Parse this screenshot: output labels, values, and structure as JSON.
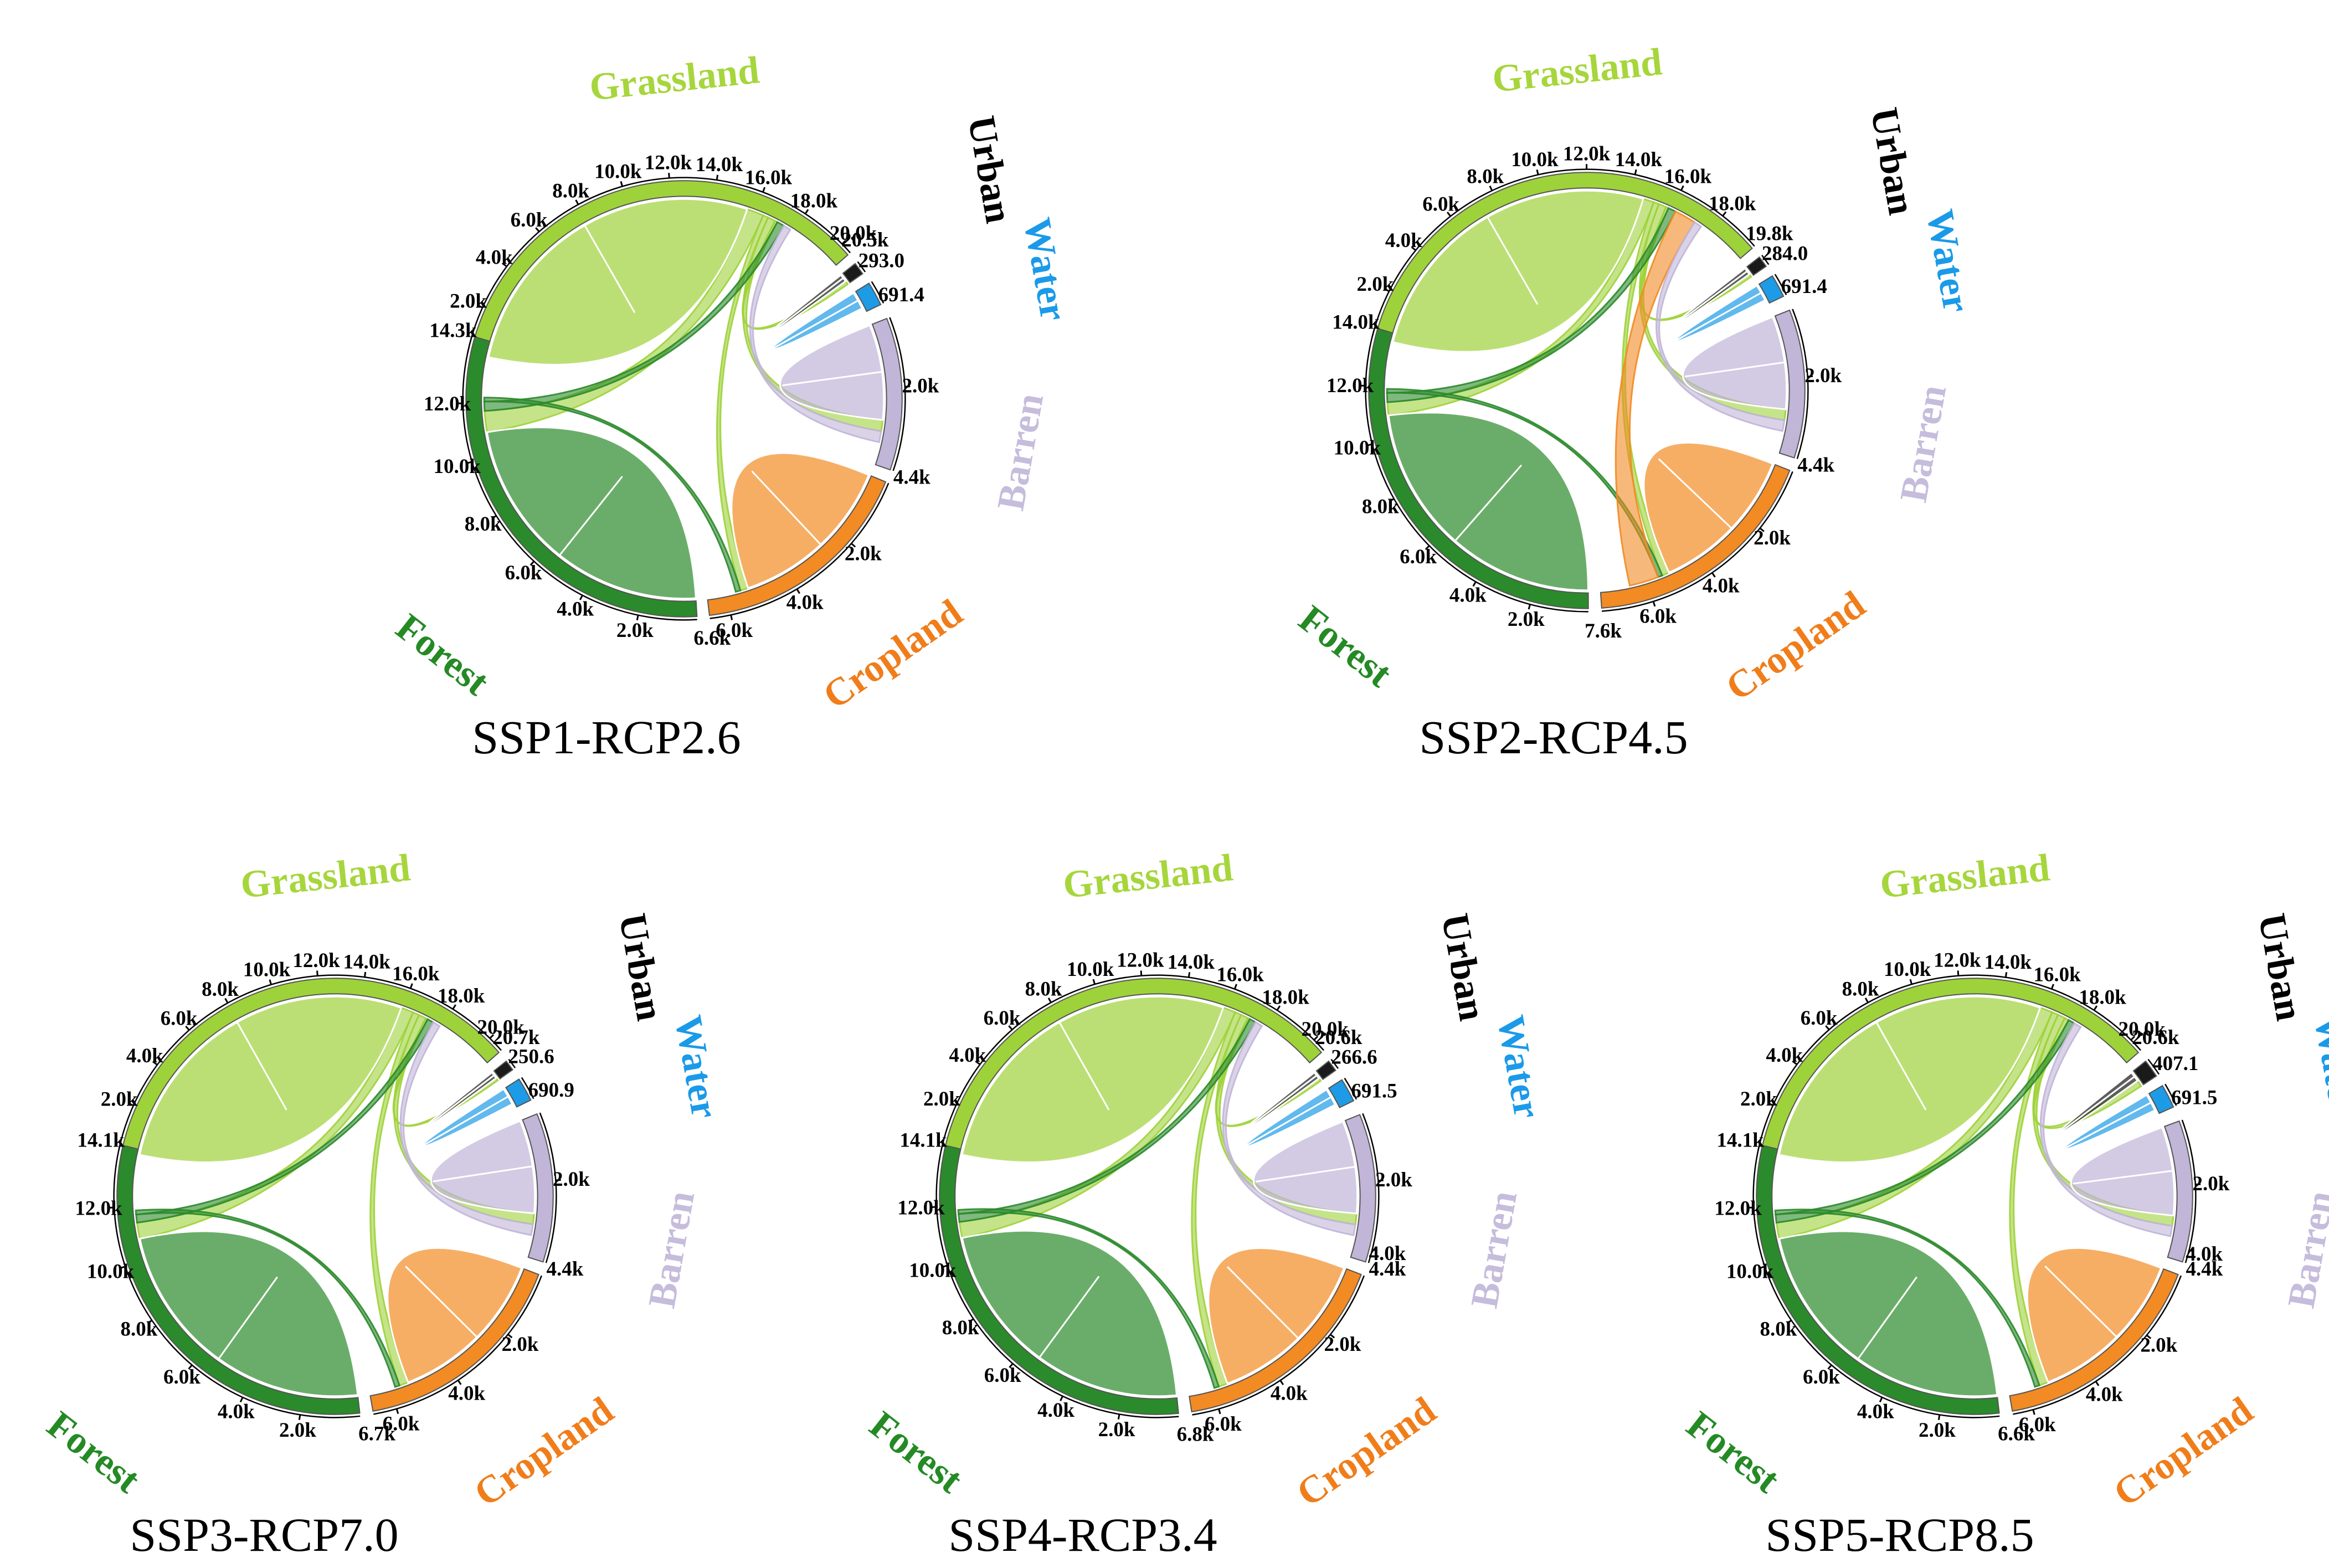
{
  "colors": {
    "Grassland": "#9ed23a",
    "Forest": "#2b8a2b",
    "Cropland": "#f28b23",
    "Barren": "#c1b5d8",
    "Water": "#1e9be6",
    "Urban": "#1a1a1a"
  },
  "label_colors": {
    "Grassland": "#a6d63c",
    "Forest": "#248a24",
    "Cropland": "#f07d1a",
    "Barren": "#c6bcdc",
    "Water": "#1a9ae8",
    "Urban": "#000000"
  },
  "chart_data": [
    {
      "type": "chord",
      "title": "SSP1-RCP2.6",
      "sectors": [
        {
          "name": "Grassland",
          "total": 20.5,
          "ticks": [
            "2.0k",
            "4.0k",
            "6.0k",
            "8.0k",
            "10.0k",
            "12.0k",
            "14.0k",
            "16.0k",
            "18.0k",
            "20.0k"
          ],
          "end_label": "20.5k"
        },
        {
          "name": "Forest",
          "total": 14.3,
          "ticks": [
            "2.0k",
            "4.0k",
            "6.0k",
            "8.0k",
            "10.0k",
            "12.0k"
          ],
          "end_label": "14.3k"
        },
        {
          "name": "Cropland",
          "total": 6.6,
          "ticks": [
            "2.0k",
            "4.0k",
            "6.0k"
          ],
          "end_label": "6.6k"
        },
        {
          "name": "Barren",
          "total": 4.4,
          "ticks": [
            "2.0k"
          ],
          "end_label": "4.4k"
        },
        {
          "name": "Water",
          "total": 0.6914,
          "ticks": [],
          "end_label": "691.4"
        },
        {
          "name": "Urban",
          "total": 0.293,
          "ticks": [],
          "end_label": "293.0"
        }
      ],
      "flows": [
        {
          "from": "Grassland",
          "to": "Grassland",
          "value": 15.6
        },
        {
          "from": "Grassland",
          "to": "Forest",
          "value": 0.8
        },
        {
          "from": "Grassland",
          "to": "Cropland",
          "value": 0.25
        },
        {
          "from": "Grassland",
          "to": "Barren",
          "value": 0.35
        },
        {
          "from": "Grassland",
          "to": "Urban",
          "value": 0.12
        },
        {
          "from": "Forest",
          "to": "Forest",
          "value": 10.9
        },
        {
          "from": "Forest",
          "to": "Grassland",
          "value": 0.35
        },
        {
          "from": "Forest",
          "to": "Cropland",
          "value": 0.15
        },
        {
          "from": "Cropland",
          "to": "Cropland",
          "value": 5.3
        },
        {
          "from": "Barren",
          "to": "Barren",
          "value": 3.0
        },
        {
          "from": "Barren",
          "to": "Grassland",
          "value": 0.35
        },
        {
          "from": "Water",
          "to": "Water",
          "value": 0.55
        },
        {
          "from": "Urban",
          "to": "Urban",
          "value": 0.2
        }
      ]
    },
    {
      "type": "chord",
      "title": "SSP2-RCP4.5",
      "sectors": [
        {
          "name": "Grassland",
          "total": 19.8,
          "ticks": [
            "2.0k",
            "4.0k",
            "6.0k",
            "8.0k",
            "10.0k",
            "12.0k",
            "14.0k",
            "16.0k",
            "18.0k"
          ],
          "end_label": "19.8k"
        },
        {
          "name": "Forest",
          "total": 14.0,
          "ticks": [
            "2.0k",
            "4.0k",
            "6.0k",
            "8.0k",
            "10.0k",
            "12.0k"
          ],
          "end_label": "14.0k"
        },
        {
          "name": "Cropland",
          "total": 7.6,
          "ticks": [
            "2.0k",
            "4.0k",
            "6.0k"
          ],
          "end_label": "7.6k"
        },
        {
          "name": "Barren",
          "total": 4.4,
          "ticks": [
            "2.0k"
          ],
          "end_label": "4.4k"
        },
        {
          "name": "Water",
          "total": 0.6914,
          "ticks": [],
          "end_label": "691.4"
        },
        {
          "name": "Urban",
          "total": 0.284,
          "ticks": [],
          "end_label": "284.0"
        }
      ],
      "flows": [
        {
          "from": "Grassland",
          "to": "Grassland",
          "value": 14.6
        },
        {
          "from": "Grassland",
          "to": "Forest",
          "value": 0.5
        },
        {
          "from": "Grassland",
          "to": "Cropland",
          "value": 0.25
        },
        {
          "from": "Grassland",
          "to": "Barren",
          "value": 0.35
        },
        {
          "from": "Grassland",
          "to": "Urban",
          "value": 0.12
        },
        {
          "from": "Forest",
          "to": "Forest",
          "value": 10.9
        },
        {
          "from": "Forest",
          "to": "Grassland",
          "value": 0.35
        },
        {
          "from": "Forest",
          "to": "Cropland",
          "value": 0.15
        },
        {
          "from": "Cropland",
          "to": "Cropland",
          "value": 5.2
        },
        {
          "from": "Cropland",
          "to": "Grassland",
          "value": 1.0
        },
        {
          "from": "Barren",
          "to": "Barren",
          "value": 3.0
        },
        {
          "from": "Barren",
          "to": "Grassland",
          "value": 0.35
        },
        {
          "from": "Water",
          "to": "Water",
          "value": 0.55
        },
        {
          "from": "Urban",
          "to": "Urban",
          "value": 0.2
        }
      ]
    },
    {
      "type": "chord",
      "title": "SSP3-RCP7.0",
      "sectors": [
        {
          "name": "Grassland",
          "total": 20.7,
          "ticks": [
            "2.0k",
            "4.0k",
            "6.0k",
            "8.0k",
            "10.0k",
            "12.0k",
            "14.0k",
            "16.0k",
            "18.0k",
            "20.0k"
          ],
          "end_label": "20.7k"
        },
        {
          "name": "Forest",
          "total": 14.1,
          "ticks": [
            "2.0k",
            "4.0k",
            "6.0k",
            "8.0k",
            "10.0k",
            "12.0k"
          ],
          "end_label": "14.1k"
        },
        {
          "name": "Cropland",
          "total": 6.7,
          "ticks": [
            "2.0k",
            "4.0k",
            "6.0k"
          ],
          "end_label": "6.7k"
        },
        {
          "name": "Barren",
          "total": 4.4,
          "ticks": [
            "2.0k"
          ],
          "end_label": "4.4k"
        },
        {
          "name": "Water",
          "total": 0.6909,
          "ticks": [],
          "end_label": "690.9"
        },
        {
          "name": "Urban",
          "total": 0.2506,
          "ticks": [],
          "end_label": "250.6"
        }
      ],
      "flows": [
        {
          "from": "Grassland",
          "to": "Grassland",
          "value": 15.9
        },
        {
          "from": "Grassland",
          "to": "Forest",
          "value": 0.6
        },
        {
          "from": "Grassland",
          "to": "Cropland",
          "value": 0.3
        },
        {
          "from": "Grassland",
          "to": "Barren",
          "value": 0.35
        },
        {
          "from": "Grassland",
          "to": "Urban",
          "value": 0.1
        },
        {
          "from": "Forest",
          "to": "Forest",
          "value": 10.8
        },
        {
          "from": "Forest",
          "to": "Grassland",
          "value": 0.3
        },
        {
          "from": "Forest",
          "to": "Cropland",
          "value": 0.15
        },
        {
          "from": "Cropland",
          "to": "Cropland",
          "value": 5.4
        },
        {
          "from": "Barren",
          "to": "Barren",
          "value": 3.0
        },
        {
          "from": "Barren",
          "to": "Grassland",
          "value": 0.35
        },
        {
          "from": "Water",
          "to": "Water",
          "value": 0.55
        },
        {
          "from": "Urban",
          "to": "Urban",
          "value": 0.18
        }
      ]
    },
    {
      "type": "chord",
      "title": "SSP4-RCP3.4",
      "sectors": [
        {
          "name": "Grassland",
          "total": 20.6,
          "ticks": [
            "2.0k",
            "4.0k",
            "6.0k",
            "8.0k",
            "10.0k",
            "12.0k",
            "14.0k",
            "16.0k",
            "18.0k",
            "20.0k"
          ],
          "end_label": "20.6k"
        },
        {
          "name": "Forest",
          "total": 14.1,
          "ticks": [
            "2.0k",
            "4.0k",
            "6.0k",
            "8.0k",
            "10.0k",
            "12.0k"
          ],
          "end_label": "14.1k"
        },
        {
          "name": "Cropland",
          "total": 6.8,
          "ticks": [
            "2.0k",
            "4.0k",
            "6.0k"
          ],
          "end_label": "6.8k"
        },
        {
          "name": "Barren",
          "total": 4.4,
          "ticks": [
            "2.0k",
            "4.0k"
          ],
          "end_label": "4.4k"
        },
        {
          "name": "Water",
          "total": 0.6915,
          "ticks": [],
          "end_label": "691.5"
        },
        {
          "name": "Urban",
          "total": 0.2666,
          "ticks": [],
          "end_label": "266.6"
        }
      ],
      "flows": [
        {
          "from": "Grassland",
          "to": "Grassland",
          "value": 15.8
        },
        {
          "from": "Grassland",
          "to": "Forest",
          "value": 0.6
        },
        {
          "from": "Grassland",
          "to": "Cropland",
          "value": 0.3
        },
        {
          "from": "Grassland",
          "to": "Barren",
          "value": 0.35
        },
        {
          "from": "Grassland",
          "to": "Urban",
          "value": 0.1
        },
        {
          "from": "Forest",
          "to": "Forest",
          "value": 10.8
        },
        {
          "from": "Forest",
          "to": "Grassland",
          "value": 0.3
        },
        {
          "from": "Forest",
          "to": "Cropland",
          "value": 0.15
        },
        {
          "from": "Cropland",
          "to": "Cropland",
          "value": 5.5
        },
        {
          "from": "Barren",
          "to": "Barren",
          "value": 3.0
        },
        {
          "from": "Barren",
          "to": "Grassland",
          "value": 0.35
        },
        {
          "from": "Water",
          "to": "Water",
          "value": 0.55
        },
        {
          "from": "Urban",
          "to": "Urban",
          "value": 0.19
        }
      ]
    },
    {
      "type": "chord",
      "title": "SSP5-RCP8.5",
      "sectors": [
        {
          "name": "Grassland",
          "total": 20.6,
          "ticks": [
            "2.0k",
            "4.0k",
            "6.0k",
            "8.0k",
            "10.0k",
            "12.0k",
            "14.0k",
            "16.0k",
            "18.0k",
            "20.0k"
          ],
          "end_label": "20.6k"
        },
        {
          "name": "Forest",
          "total": 14.1,
          "ticks": [
            "2.0k",
            "4.0k",
            "6.0k",
            "8.0k",
            "10.0k",
            "12.0k"
          ],
          "end_label": "14.1k"
        },
        {
          "name": "Cropland",
          "total": 6.6,
          "ticks": [
            "2.0k",
            "4.0k",
            "6.0k"
          ],
          "end_label": "6.6k"
        },
        {
          "name": "Barren",
          "total": 4.4,
          "ticks": [
            "2.0k",
            "4.0k"
          ],
          "end_label": "4.4k"
        },
        {
          "name": "Water",
          "total": 0.6915,
          "ticks": [],
          "end_label": "691.5"
        },
        {
          "name": "Urban",
          "total": 0.4071,
          "ticks": [],
          "end_label": "407.1"
        }
      ],
      "flows": [
        {
          "from": "Grassland",
          "to": "Grassland",
          "value": 15.8
        },
        {
          "from": "Grassland",
          "to": "Forest",
          "value": 0.6
        },
        {
          "from": "Grassland",
          "to": "Cropland",
          "value": 0.3
        },
        {
          "from": "Grassland",
          "to": "Barren",
          "value": 0.35
        },
        {
          "from": "Grassland",
          "to": "Urban",
          "value": 0.2
        },
        {
          "from": "Forest",
          "to": "Forest",
          "value": 10.8
        },
        {
          "from": "Forest",
          "to": "Grassland",
          "value": 0.3
        },
        {
          "from": "Forest",
          "to": "Cropland",
          "value": 0.15
        },
        {
          "from": "Cropland",
          "to": "Cropland",
          "value": 5.3
        },
        {
          "from": "Barren",
          "to": "Barren",
          "value": 3.0
        },
        {
          "from": "Barren",
          "to": "Grassland",
          "value": 0.35
        },
        {
          "from": "Water",
          "to": "Water",
          "value": 0.55
        },
        {
          "from": "Urban",
          "to": "Urban",
          "value": 0.25
        }
      ]
    }
  ]
}
